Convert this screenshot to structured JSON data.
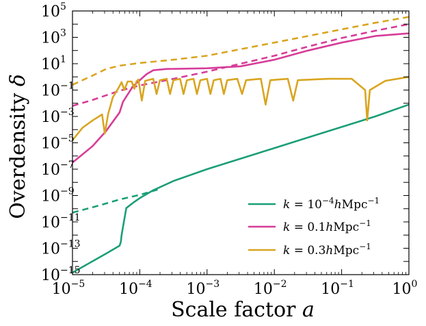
{
  "chart_data": {
    "type": "line",
    "xlabel": "Scale factor",
    "xlabel_symbol": "a",
    "ylabel": "Overdensity",
    "ylabel_symbol": "δ",
    "xscale": "log",
    "yscale": "log",
    "xlim": [
      1e-05,
      1
    ],
    "ylim": [
      1e-15,
      100000
    ],
    "x_ticks": [
      {
        "base": "10",
        "exp": "−5"
      },
      {
        "base": "10",
        "exp": "−4"
      },
      {
        "base": "10",
        "exp": "−3"
      },
      {
        "base": "10",
        "exp": "−2"
      },
      {
        "base": "10",
        "exp": "−1"
      },
      {
        "base": "10",
        "exp": "0"
      }
    ],
    "y_ticks": [
      {
        "base": "10",
        "exp": "−15"
      },
      {
        "base": "10",
        "exp": "−13"
      },
      {
        "base": "10",
        "exp": "−11"
      },
      {
        "base": "10",
        "exp": "−9"
      },
      {
        "base": "10",
        "exp": "−7"
      },
      {
        "base": "10",
        "exp": "−5"
      },
      {
        "base": "10",
        "exp": "−3"
      },
      {
        "base": "10",
        "exp": "−1"
      },
      {
        "base": "10",
        "exp": "1"
      },
      {
        "base": "10",
        "exp": "3"
      },
      {
        "base": "10",
        "exp": "5"
      }
    ],
    "legend_position": "lower-right",
    "series": [
      {
        "name": "k = 10^-4 h Mpc^-1",
        "legend_parts": {
          "lhs": "k",
          "eq": " = 10",
          "sup1": "−4",
          "mid": "hMpc",
          "sup2": "−1"
        },
        "color": "#1b9e77",
        "solid": [
          [
            -5,
            -14.85
          ],
          [
            -4.5,
            -13.4
          ],
          [
            -4.3,
            -12.8
          ],
          [
            -4.28,
            -12.5
          ],
          [
            -4.27,
            -12.0
          ],
          [
            -4.2,
            -9.95
          ],
          [
            -4.1,
            -9.55
          ],
          [
            -4.0,
            -9.2
          ],
          [
            -3.8,
            -8.6
          ],
          [
            -3.5,
            -7.9
          ],
          [
            -3.0,
            -7.0
          ],
          [
            -2.5,
            -6.2
          ],
          [
            -2.0,
            -5.4
          ],
          [
            -1.5,
            -4.6
          ],
          [
            -1.0,
            -3.8
          ],
          [
            -0.5,
            -3.0
          ],
          [
            0,
            -2.1
          ]
        ],
        "dashed": [
          [
            -5,
            -10.3
          ],
          [
            -4.6,
            -9.75
          ],
          [
            -4.3,
            -9.3
          ],
          [
            -4.0,
            -8.95
          ],
          [
            -3.7,
            -8.5
          ]
        ]
      },
      {
        "name": "k = 0.1 h Mpc^-1",
        "legend_parts": {
          "lhs": "k",
          "eq": " = 0.1",
          "sup1": "",
          "mid": "hMpc",
          "sup2": "−1"
        },
        "color": "#d63c98",
        "solid": [
          [
            -5,
            -6.5
          ],
          [
            -4.7,
            -5.25
          ],
          [
            -4.5,
            -4.1
          ],
          [
            -4.3,
            -2.7
          ],
          [
            -4.25,
            -1.9
          ],
          [
            -4.2,
            -1.5
          ],
          [
            -4.1,
            -0.7
          ],
          [
            -4.0,
            -0.25
          ],
          [
            -3.9,
            0.2
          ],
          [
            -3.8,
            0.5
          ],
          [
            -3.6,
            0.6
          ],
          [
            -3.0,
            0.65
          ],
          [
            -2.5,
            0.8
          ],
          [
            -2.0,
            1.3
          ],
          [
            -1.5,
            2.0
          ],
          [
            -1.0,
            2.6
          ],
          [
            -0.5,
            3.1
          ],
          [
            0,
            3.3
          ]
        ],
        "dashed": [
          [
            -5,
            -2.2
          ],
          [
            -4.7,
            -1.75
          ],
          [
            -4.5,
            -1.4
          ],
          [
            -4.3,
            -1.05
          ],
          [
            -4.0,
            -0.65
          ],
          [
            -3.5,
            -0.15
          ],
          [
            -3.0,
            0.4
          ],
          [
            -2.5,
            1.0
          ],
          [
            -2.0,
            1.6
          ],
          [
            -1.5,
            2.3
          ],
          [
            -1.0,
            2.95
          ],
          [
            -0.5,
            3.5
          ],
          [
            0,
            4.0
          ]
        ]
      },
      {
        "name": "k = 0.3 h Mpc^-1",
        "legend_parts": {
          "lhs": "k",
          "eq": " = 0.3",
          "sup1": "",
          "mid": "hMpc",
          "sup2": "−1"
        },
        "color": "#d9a520",
        "solid": [
          [
            -5,
            -4.8
          ],
          [
            -4.85,
            -3.85
          ],
          [
            -4.7,
            -3.3
          ],
          [
            -4.56,
            -2.85
          ],
          [
            -4.52,
            -4.3
          ],
          [
            -4.47,
            -2.8
          ],
          [
            -4.4,
            -1.55
          ],
          [
            -4.3,
            -0.7
          ],
          [
            -4.27,
            -0.4
          ],
          [
            -4.23,
            -1.0
          ],
          [
            -4.18,
            -0.35
          ],
          [
            -4.12,
            -0.35
          ],
          [
            -4.08,
            -0.9
          ],
          [
            -4.05,
            -0.35
          ],
          [
            -4.02,
            -0.2
          ],
          [
            -3.97,
            -1.8
          ],
          [
            -3.92,
            -0.3
          ],
          [
            -3.8,
            -0.15
          ],
          [
            -3.75,
            -1.3
          ],
          [
            -3.7,
            -0.25
          ],
          [
            -3.6,
            -0.15
          ],
          [
            -3.55,
            -1.3
          ],
          [
            -3.5,
            -0.25
          ],
          [
            -3.4,
            -0.15
          ],
          [
            -3.35,
            -1.3
          ],
          [
            -3.3,
            -0.25
          ],
          [
            -3.2,
            -0.15
          ],
          [
            -3.15,
            -1.3
          ],
          [
            -3.1,
            -0.25
          ],
          [
            -3.0,
            -0.15
          ],
          [
            -2.95,
            -1.3
          ],
          [
            -2.9,
            -0.25
          ],
          [
            -2.8,
            -0.15
          ],
          [
            -2.75,
            -1.3
          ],
          [
            -2.7,
            -0.25
          ],
          [
            -2.55,
            -0.15
          ],
          [
            -2.48,
            -1.3
          ],
          [
            -2.42,
            -0.25
          ],
          [
            -2.2,
            -0.15
          ],
          [
            -2.13,
            -2.1
          ],
          [
            -2.06,
            -0.25
          ],
          [
            -1.8,
            -0.15
          ],
          [
            -1.72,
            -1.8
          ],
          [
            -1.65,
            -0.25
          ],
          [
            -1.2,
            -0.15
          ],
          [
            -0.85,
            -0.15
          ],
          [
            -0.65,
            -1.0
          ],
          [
            -0.62,
            -3.3
          ],
          [
            -0.58,
            -1.0
          ],
          [
            -0.35,
            -0.3
          ],
          [
            0,
            0.0
          ]
        ],
        "dashed": [
          [
            -5,
            -0.6
          ],
          [
            -4.7,
            0.1
          ],
          [
            -4.5,
            0.6
          ],
          [
            -4.3,
            0.85
          ],
          [
            -4.0,
            1.05
          ],
          [
            -3.5,
            1.3
          ],
          [
            -3.0,
            1.6
          ],
          [
            -2.5,
            2.1
          ],
          [
            -2.0,
            2.6
          ],
          [
            -1.5,
            3.1
          ],
          [
            -1.0,
            3.6
          ],
          [
            -0.5,
            4.1
          ],
          [
            0,
            4.55
          ]
        ]
      }
    ]
  }
}
